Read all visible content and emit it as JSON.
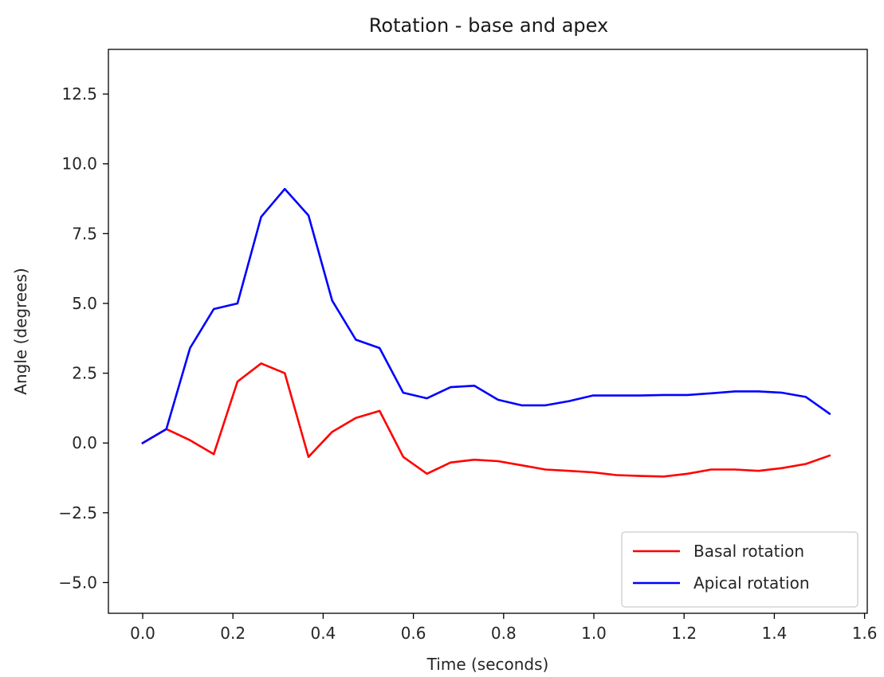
{
  "chart_data": {
    "type": "line",
    "title": "Rotation - base and apex",
    "xlabel": "Time (seconds)",
    "ylabel": "Angle (degrees)",
    "xlim": [
      -0.076,
      1.606
    ],
    "ylim": [
      -6.1,
      14.1
    ],
    "xticks": [
      0.0,
      0.2,
      0.4,
      0.6,
      0.8,
      1.0,
      1.2,
      1.4,
      1.6
    ],
    "xtick_labels": [
      "0.0",
      "0.2",
      "0.4",
      "0.6",
      "0.8",
      "1.0",
      "1.2",
      "1.4",
      "1.6"
    ],
    "yticks": [
      -5.0,
      -2.5,
      0.0,
      2.5,
      5.0,
      7.5,
      10.0,
      12.5
    ],
    "ytick_labels": [
      "−5.0",
      "−2.5",
      "0.0",
      "2.5",
      "5.0",
      "7.5",
      "10.0",
      "12.5"
    ],
    "grid": false,
    "legend_position": "lower-right",
    "x": [
      0.0,
      0.0525,
      0.105,
      0.1575,
      0.21,
      0.2625,
      0.315,
      0.3675,
      0.42,
      0.4725,
      0.525,
      0.5775,
      0.63,
      0.6825,
      0.735,
      0.7875,
      0.84,
      0.8925,
      0.945,
      0.9975,
      1.05,
      1.1025,
      1.155,
      1.2075,
      1.26,
      1.3125,
      1.365,
      1.4175,
      1.47,
      1.5225
    ],
    "series": [
      {
        "name": "Basal rotation",
        "color": "#ff0000",
        "values": [
          0.0,
          0.5,
          0.1,
          -0.4,
          2.2,
          2.85,
          2.5,
          -0.5,
          0.4,
          0.9,
          1.15,
          -0.5,
          -1.1,
          -0.7,
          -0.6,
          -0.65,
          -0.8,
          -0.95,
          -1.0,
          -1.05,
          -1.15,
          -1.18,
          -1.2,
          -1.1,
          -0.95,
          -0.95,
          -1.0,
          -0.9,
          -0.75,
          -0.45
        ]
      },
      {
        "name": "Apical rotation",
        "color": "#0000ff",
        "values": [
          0.0,
          0.5,
          3.4,
          4.8,
          5.0,
          8.1,
          9.1,
          8.15,
          5.1,
          3.7,
          3.4,
          1.8,
          1.6,
          2.0,
          2.05,
          1.55,
          1.35,
          1.35,
          1.5,
          1.7,
          1.7,
          1.7,
          1.72,
          1.72,
          1.78,
          1.85,
          1.85,
          1.8,
          1.65,
          1.05
        ]
      }
    ]
  }
}
